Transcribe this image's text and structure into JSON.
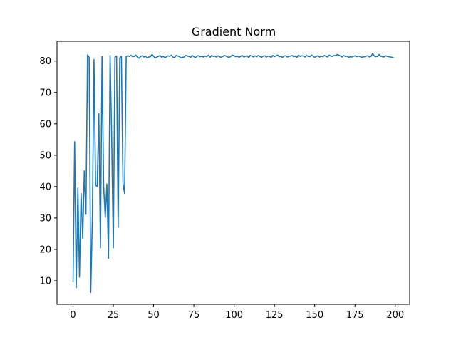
{
  "chart_data": {
    "type": "line",
    "title": "Gradient Norm",
    "xlabel": "",
    "ylabel": "",
    "xlim": [
      -9.95,
      208.95
    ],
    "ylim": [
      2.5,
      86.3
    ],
    "grid": false,
    "legend": "none",
    "x_ticks": [
      0,
      25,
      50,
      75,
      100,
      125,
      150,
      175,
      200
    ],
    "y_ticks": [
      10,
      20,
      30,
      40,
      50,
      60,
      70,
      80
    ],
    "colors": {
      "line": "#1f77b4",
      "axes": "#000000",
      "background": "#ffffff"
    },
    "series": [
      {
        "x_start": 0,
        "x_step": 1,
        "values": [
          9.5,
          54.3,
          7.8,
          39.5,
          11.2,
          37.8,
          23.5,
          45.0,
          31.2,
          82.0,
          81.2,
          6.3,
          30.0,
          80.5,
          40.5,
          40.0,
          63.2,
          20.5,
          81.5,
          40.0,
          30.2,
          40.8,
          17.2,
          81.8,
          55.0,
          20.5,
          81.2,
          81.6,
          27.0,
          81.0,
          81.5,
          41.0,
          37.8,
          81.5,
          81.7,
          81.5,
          81.8,
          81.4,
          81.5,
          81.9,
          81.2,
          80.9,
          81.5,
          81.7,
          81.3,
          81.6,
          81.0,
          81.3,
          81.4,
          82.1,
          81.5,
          81.0,
          81.3,
          81.5,
          81.8,
          81.2,
          81.6,
          81.0,
          81.4,
          81.7,
          81.5,
          81.9,
          81.3,
          81.1,
          81.8,
          81.6,
          81.5,
          81.0,
          81.2,
          81.3,
          81.8,
          81.6,
          81.5,
          81.2,
          81.8,
          81.4,
          81.1,
          81.6,
          81.7,
          81.4,
          81.5,
          81.3,
          81.6,
          81.4,
          81.9,
          81.2,
          81.8,
          81.5,
          81.6,
          81.3,
          81.7,
          81.4,
          81.2,
          81.5,
          81.8,
          81.6,
          81.3,
          81.2,
          81.6,
          81.9,
          81.7,
          81.4,
          81.6,
          81.2,
          81.5,
          81.8,
          81.3,
          81.5,
          81.7,
          81.1,
          81.8,
          81.6,
          81.3,
          81.7,
          81.4,
          81.8,
          81.5,
          81.2,
          81.6,
          81.7,
          81.3,
          81.6,
          81.5,
          81.2,
          81.8,
          81.4,
          81.7,
          81.9,
          81.4,
          81.5,
          81.2,
          81.6,
          81.7,
          81.3,
          81.5,
          81.6,
          81.8,
          81.4,
          81.6,
          81.2,
          81.9,
          81.5,
          81.7,
          81.6,
          81.3,
          81.8,
          81.5,
          81.4,
          81.9,
          81.6,
          81.2,
          81.5,
          81.7,
          81.3,
          81.6,
          81.4,
          81.8,
          81.5,
          81.3,
          81.9,
          81.6,
          81.5,
          81.8,
          81.7,
          82.1,
          81.9,
          81.6,
          81.3,
          81.8,
          81.5,
          81.6,
          81.2,
          81.4,
          81.3,
          81.5,
          81.7,
          81.4,
          81.6,
          81.5,
          81.2,
          81.3,
          81.4,
          81.6,
          81.7,
          81.3,
          81.5,
          82.5,
          81.6,
          81.4,
          81.5,
          82.1,
          81.6,
          81.4,
          81.3,
          81.7,
          81.5,
          81.4,
          81.3,
          81.2,
          81.1
        ]
      }
    ]
  }
}
